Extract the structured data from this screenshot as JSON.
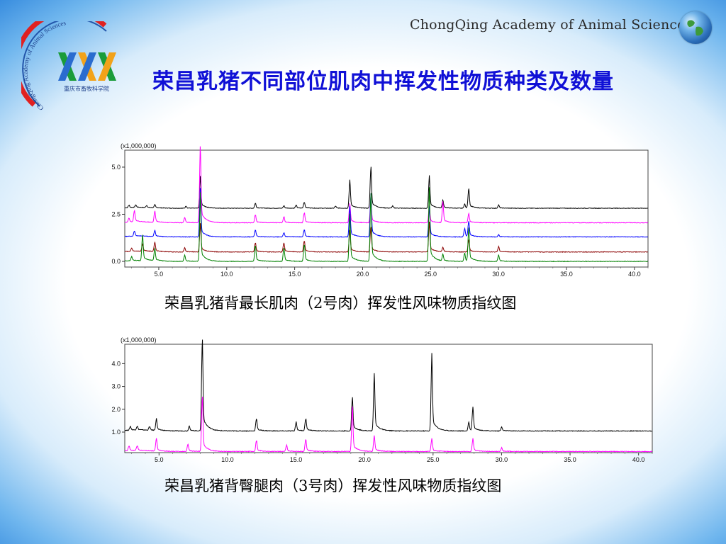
{
  "header": {
    "brand": "ChongQing Academy of Animal Sciences",
    "logo_text": "重庆市畜牧科学院",
    "logo_arc_text": "ChongQing Academy of Animal Sciences",
    "globe_icon": "globe-icon"
  },
  "slide": {
    "title": "荣昌乳猪不同部位肌肉中挥发性物质种类及数量"
  },
  "captions": {
    "chart1": "荣昌乳猪背最长肌肉（2号肉）挥发性风味物质指纹图",
    "chart2": "荣昌乳猪背臀腿肉（3号肉）挥发性风味物质指纹图"
  },
  "chart_data": [
    {
      "type": "line",
      "multiplier_label": "(x1,000,000)",
      "xlim": [
        2.5,
        41
      ],
      "ylim": [
        -0.3,
        5.9
      ],
      "x_ticks": [
        "5.0",
        "10.0",
        "15.0",
        "20.0",
        "25.0",
        "30.0",
        "35.0",
        "40.0"
      ],
      "x_tick_values": [
        5,
        10,
        15,
        20,
        25,
        30,
        35,
        40
      ],
      "y_ticks": [
        "0.0",
        "2.5",
        "5.0"
      ],
      "y_tick_values": [
        0,
        2.5,
        5
      ],
      "series": [
        {
          "color": "#000000",
          "baseline": 2.82,
          "peaks": [
            [
              2.8,
              0.12
            ],
            [
              3.3,
              0.12
            ],
            [
              4.1,
              0.1
            ],
            [
              4.7,
              0.15
            ],
            [
              7.0,
              0.1
            ],
            [
              8.05,
              1.45
            ],
            [
              12.1,
              0.25
            ],
            [
              14.2,
              0.12
            ],
            [
              15.1,
              0.15
            ],
            [
              15.7,
              0.3
            ],
            [
              18.0,
              0.1
            ],
            [
              19.05,
              1.3
            ],
            [
              20.6,
              2.0
            ],
            [
              22.2,
              0.1
            ],
            [
              24.9,
              1.5
            ],
            [
              25.9,
              0.35
            ],
            [
              27.5,
              0.2
            ],
            [
              27.8,
              0.95
            ],
            [
              30.0,
              0.15
            ]
          ]
        },
        {
          "color": "#ff00ff",
          "baseline": 2.05,
          "peaks": [
            [
              2.8,
              0.2
            ],
            [
              3.2,
              0.55
            ],
            [
              4.7,
              0.55
            ],
            [
              6.9,
              0.25
            ],
            [
              8.05,
              3.6
            ],
            [
              12.1,
              0.4
            ],
            [
              14.2,
              0.3
            ],
            [
              15.7,
              0.5
            ],
            [
              19.05,
              0.9
            ],
            [
              20.6,
              1.1
            ],
            [
              24.9,
              0.8
            ],
            [
              25.9,
              0.95
            ],
            [
              27.8,
              0.45
            ]
          ]
        },
        {
          "color": "#0000ff",
          "baseline": 1.3,
          "peaks": [
            [
              3.2,
              0.25
            ],
            [
              4.7,
              0.3
            ],
            [
              8.05,
              2.2
            ],
            [
              12.1,
              0.35
            ],
            [
              14.2,
              0.2
            ],
            [
              15.7,
              0.35
            ],
            [
              19.05,
              1.4
            ],
            [
              20.6,
              2.1
            ],
            [
              24.9,
              1.4
            ],
            [
              27.5,
              0.4
            ],
            [
              27.8,
              0.75
            ],
            [
              30.0,
              0.1
            ]
          ]
        },
        {
          "color": "#8b0000",
          "baseline": 0.5,
          "peaks": [
            [
              3.0,
              0.15
            ],
            [
              3.8,
              0.35
            ],
            [
              4.7,
              0.45
            ],
            [
              6.9,
              0.2
            ],
            [
              8.05,
              1.3
            ],
            [
              12.1,
              0.45
            ],
            [
              14.2,
              0.45
            ],
            [
              15.7,
              0.55
            ],
            [
              19.05,
              1.0
            ],
            [
              20.6,
              1.2
            ],
            [
              24.9,
              1.4
            ],
            [
              25.9,
              0.2
            ],
            [
              27.8,
              0.6
            ],
            [
              30.0,
              0.25
            ]
          ]
        },
        {
          "color": "#008000",
          "baseline": 0.0,
          "peaks": [
            [
              3.0,
              0.2
            ],
            [
              3.8,
              1.25
            ],
            [
              4.7,
              0.6
            ],
            [
              6.9,
              0.3
            ],
            [
              8.05,
              3.1
            ],
            [
              12.1,
              0.8
            ],
            [
              14.2,
              0.7
            ],
            [
              15.7,
              0.85
            ],
            [
              19.05,
              2.2
            ],
            [
              20.6,
              3.3
            ],
            [
              24.9,
              3.4
            ],
            [
              25.9,
              0.3
            ],
            [
              27.5,
              0.4
            ],
            [
              27.8,
              1.6
            ],
            [
              30.0,
              0.3
            ]
          ]
        }
      ]
    },
    {
      "type": "line",
      "multiplier_label": "(x1,000,000)",
      "xlim": [
        2.5,
        41
      ],
      "ylim": [
        0.1,
        4.85
      ],
      "x_ticks": [
        "5.0",
        "10.0",
        "15.0",
        "20.0",
        "25.0",
        "30.0",
        "35.0",
        "40.0"
      ],
      "x_tick_values": [
        5,
        10,
        15,
        20,
        25,
        30,
        35,
        40
      ],
      "y_ticks": [
        "1.0",
        "2.0",
        "3.0",
        "4.0"
      ],
      "y_tick_values": [
        1,
        2,
        3,
        4
      ],
      "series": [
        {
          "color": "#000000",
          "baseline": 1.05,
          "peaks": [
            [
              2.9,
              0.15
            ],
            [
              3.4,
              0.15
            ],
            [
              4.3,
              0.15
            ],
            [
              4.8,
              0.45
            ],
            [
              7.2,
              0.2
            ],
            [
              8.15,
              3.7
            ],
            [
              12.1,
              0.5
            ],
            [
              15.0,
              0.35
            ],
            [
              15.7,
              0.5
            ],
            [
              19.1,
              1.35
            ],
            [
              20.7,
              2.2
            ],
            [
              24.9,
              2.95
            ],
            [
              27.6,
              0.35
            ],
            [
              27.9,
              0.9
            ],
            [
              30.0,
              0.15
            ]
          ]
        },
        {
          "color": "#ff00ff",
          "baseline": 0.15,
          "peaks": [
            [
              2.8,
              0.2
            ],
            [
              3.4,
              0.2
            ],
            [
              4.8,
              0.5
            ],
            [
              7.1,
              0.3
            ],
            [
              8.15,
              2.2
            ],
            [
              12.1,
              0.45
            ],
            [
              14.3,
              0.25
            ],
            [
              15.7,
              0.5
            ],
            [
              19.1,
              1.8
            ],
            [
              20.7,
              0.6
            ],
            [
              24.9,
              0.5
            ],
            [
              27.9,
              0.5
            ],
            [
              30.0,
              0.15
            ]
          ]
        }
      ]
    }
  ]
}
